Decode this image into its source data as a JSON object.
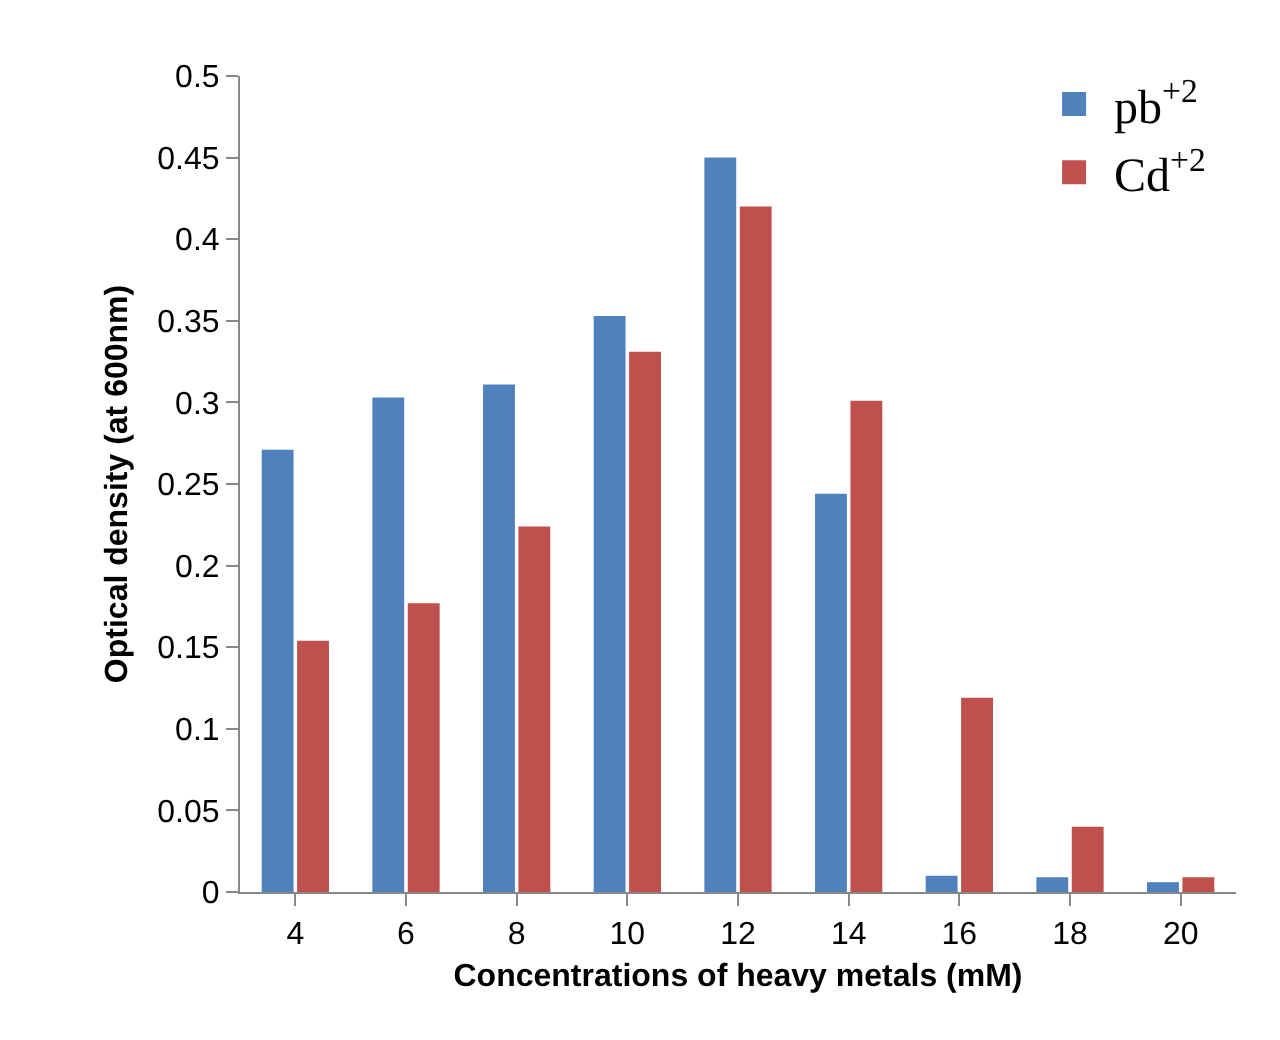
{
  "chart_data": {
    "type": "bar",
    "xlabel": "Concentrations of heavy metals (mM)",
    "ylabel": "Optical density (at 600nm)",
    "categories": [
      "4",
      "6",
      "8",
      "10",
      "12",
      "14",
      "16",
      "18",
      "20"
    ],
    "series": [
      {
        "name": "pb$^{+2}$",
        "color": "#4f81bd",
        "values": [
          0.271,
          0.303,
          0.311,
          0.353,
          0.45,
          0.244,
          0.01,
          0.009,
          0.006
        ]
      },
      {
        "name": "Cd$^{+2}$",
        "color": "#c0504d",
        "values": [
          0.154,
          0.177,
          0.224,
          0.331,
          0.42,
          0.301,
          0.119,
          0.04,
          0.009
        ]
      }
    ],
    "ylim": [
      0,
      0.5
    ],
    "yticks": [
      {
        "value": 0,
        "label": "0"
      },
      0.05,
      0.1,
      0.15,
      0.2,
      0.25,
      0.3,
      0.35,
      0.4,
      0.45,
      0.5
    ],
    "grid": false,
    "legend": "top right"
  }
}
